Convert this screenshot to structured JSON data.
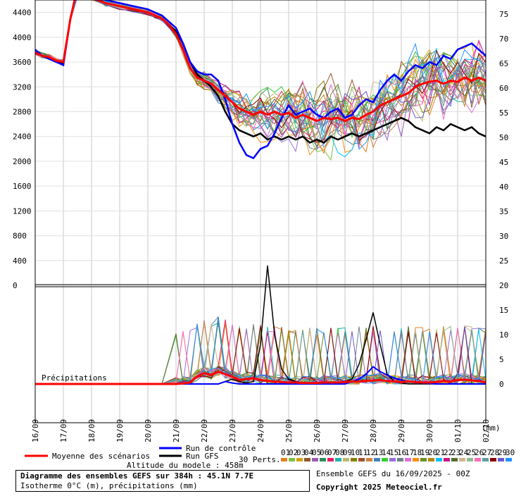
{
  "chart_data": {
    "type": "line",
    "title": "Diagramme des ensembles GEFS sur 384h : 45.1N 7.7E",
    "subtitle": "Isotherme 0°C (m), précipitations (mm)",
    "left_axis_ticks": [
      "4400",
      "4000",
      "3600",
      "3200",
      "2800",
      "2400",
      "2000",
      "1600",
      "1200",
      "800",
      "400",
      "0"
    ],
    "left_axis_range": [
      0,
      4600
    ],
    "right_axis_ticks": [
      "75",
      "70",
      "65",
      "60",
      "55",
      "50",
      "45",
      "40",
      "35",
      "30",
      "25",
      "20",
      "15",
      "10",
      "5",
      "0"
    ],
    "right_axis_unit": "(mm)",
    "x_tick_labels": [
      "16/09",
      "17/09",
      "18/09",
      "19/09",
      "20/09",
      "21/09",
      "22/09",
      "23/09",
      "24/09",
      "25/09",
      "26/09",
      "27/09",
      "28/09",
      "29/09",
      "30/09",
      "01/10",
      "02/10"
    ],
    "x_range_days": [
      0,
      16
    ],
    "precip_label": "Précipitations",
    "legend": {
      "mean": "Moyenne des scénarios",
      "control": "Run de contrôle",
      "gfs": "Run GFS",
      "perts": "30 Perts.",
      "pert_numbers": [
        "01",
        "02",
        "03",
        "04",
        "05",
        "06",
        "07",
        "08",
        "09",
        "10",
        "11",
        "12",
        "13",
        "14",
        "15",
        "16",
        "17",
        "18",
        "19",
        "20",
        "21",
        "22",
        "23",
        "24",
        "25",
        "26",
        "27",
        "28",
        "29",
        "30"
      ]
    },
    "model_altitude": "Altitude du modele : 458m",
    "run_info": "Ensemble GEFS du 16/09/2025 - 00Z",
    "copyright": "Copyright 2025 Meteociel.fr",
    "series_colors": {
      "mean": "#ff0000",
      "control": "#0000ff",
      "gfs": "#000000",
      "perts": [
        "#e67e22",
        "#7fbf3f",
        "#d4a017",
        "#8b5a2b",
        "#9b59b6",
        "#2e8b57",
        "#e91e63",
        "#20b2aa",
        "#bdb76b",
        "#808000",
        "#a0522d",
        "#cd853f",
        "#4682b4",
        "#32cd32",
        "#9370db",
        "#708090",
        "#da70d6",
        "#ff8c00",
        "#6b8e23",
        "#b8860b",
        "#00bfff",
        "#c71585",
        "#556b2f",
        "#d2b48c",
        "#8fbc8f",
        "#ff69b4",
        "#5f9ea0",
        "#8b0000",
        "#6a5acd",
        "#1e90ff"
      ]
    },
    "freezing_level": {
      "x": [
        0,
        0.25,
        0.5,
        0.75,
        1,
        1.25,
        1.5,
        1.75,
        2,
        2.5,
        3,
        3.5,
        4,
        4.25,
        4.5,
        4.75,
        5,
        5.25,
        5.5,
        5.75,
        6,
        6.25,
        6.5,
        6.75,
        7,
        7.25,
        7.5,
        7.75,
        8,
        8.25,
        8.5,
        8.75,
        9,
        9.25,
        9.5,
        9.75,
        10,
        10.25,
        10.5,
        10.75,
        11,
        11.25,
        11.5,
        11.75,
        12,
        12.25,
        12.5,
        12.75,
        13,
        13.25,
        13.5,
        13.75,
        14,
        14.25,
        14.5,
        14.75,
        15,
        15.25,
        15.5,
        15.75,
        16
      ],
      "mean": [
        3750,
        3700,
        3680,
        3620,
        3600,
        4300,
        4800,
        4700,
        4650,
        4550,
        4500,
        4450,
        4400,
        4350,
        4300,
        4200,
        4050,
        3800,
        3500,
        3350,
        3300,
        3250,
        3150,
        3050,
        2950,
        2850,
        2800,
        2750,
        2800,
        2750,
        2800,
        2750,
        2780,
        2700,
        2750,
        2700,
        2650,
        2700,
        2680,
        2700,
        2650,
        2700,
        2680,
        2750,
        2800,
        2900,
        2950,
        3000,
        3050,
        3100,
        3200,
        3250,
        3280,
        3300,
        3250,
        3300,
        3280,
        3350,
        3300,
        3350,
        3300
      ],
      "control": [
        3800,
        3700,
        3650,
        3600,
        3550,
        4300,
        4800,
        4750,
        4700,
        4600,
        4550,
        4500,
        4450,
        4400,
        4350,
        4250,
        4150,
        3900,
        3600,
        3450,
        3400,
        3400,
        3300,
        3000,
        2600,
        2300,
        2100,
        2050,
        2200,
        2250,
        2450,
        2700,
        2900,
        2750,
        2800,
        2850,
        2750,
        2700,
        2800,
        2850,
        2700,
        2750,
        2900,
        3000,
        2950,
        3150,
        3300,
        3400,
        3300,
        3450,
        3550,
        3500,
        3600,
        3550,
        3700,
        3650,
        3800,
        3850,
        3900,
        3800,
        3700
      ],
      "gfs": [
        3750,
        3700,
        3650,
        3600,
        3580,
        4300,
        4800,
        4700,
        4650,
        4550,
        4500,
        4450,
        4400,
        4350,
        4300,
        4200,
        4100,
        3900,
        3600,
        3400,
        3300,
        3200,
        3050,
        2800,
        2600,
        2500,
        2450,
        2400,
        2450,
        2350,
        2400,
        2350,
        2400,
        2350,
        2400,
        2300,
        2350,
        2300,
        2400,
        2350,
        2400,
        2450,
        2400,
        2450,
        2500,
        2550,
        2600,
        2650,
        2700,
        2650,
        2550,
        2500,
        2450,
        2550,
        2500,
        2600,
        2550,
        2500,
        2550,
        2450,
        2400
      ]
    },
    "precipitation_mm": {
      "x": [
        0,
        0.5,
        1,
        1.5,
        2,
        2.5,
        3,
        3.5,
        4,
        4.5,
        5,
        5.25,
        5.5,
        5.75,
        6,
        6.25,
        6.5,
        6.75,
        7,
        7.25,
        7.5,
        7.75,
        8,
        8.25,
        8.5,
        8.75,
        9,
        9.25,
        9.5,
        9.75,
        10,
        10.25,
        10.5,
        10.75,
        11,
        11.25,
        11.5,
        11.75,
        12,
        12.25,
        12.5,
        12.75,
        13,
        13.25,
        13.5,
        13.75,
        14,
        14.25,
        14.5,
        14.75,
        15,
        15.25,
        15.5,
        15.75,
        16
      ],
      "mean": [
        0,
        0,
        0,
        0,
        0,
        0,
        0,
        0,
        0,
        0,
        0,
        0.1,
        0.3,
        1.5,
        2.2,
        1.8,
        2.5,
        2.0,
        1.5,
        0.8,
        1.0,
        1.2,
        0.8,
        0.6,
        0.5,
        0.4,
        0.3,
        0.3,
        0.2,
        0.2,
        0.2,
        0.3,
        0.3,
        0.3,
        0.4,
        0.5,
        0.5,
        0.6,
        0.7,
        0.8,
        0.6,
        0.5,
        0.4,
        0.5,
        0.4,
        0.3,
        0.3,
        0.4,
        0.6,
        0.5,
        0.8,
        0.9,
        0.7,
        0.6,
        0.3
      ],
      "control": [
        0,
        0,
        0,
        0,
        0,
        0,
        0,
        0,
        0,
        0,
        0,
        0,
        0,
        0,
        0,
        0,
        0,
        0.5,
        0.2,
        0,
        0,
        0,
        0,
        0,
        0,
        0,
        0,
        0,
        0,
        0,
        0,
        0,
        0,
        0,
        0,
        0.5,
        1.0,
        2.0,
        3.5,
        2.5,
        1.8,
        1.2,
        0.8,
        0.5,
        0.3,
        0.2,
        0.1,
        0,
        0,
        0,
        0,
        0,
        0,
        0,
        0
      ],
      "gfs": [
        0,
        0,
        0,
        0,
        0,
        0,
        0,
        0,
        0,
        0,
        0,
        0,
        0,
        0,
        0,
        0,
        0,
        0.5,
        1.0,
        0.5,
        0.2,
        0.5,
        8.0,
        24.0,
        10.0,
        3.0,
        1.0,
        0.5,
        0.2,
        0,
        0,
        0,
        0,
        0,
        0.5,
        1.0,
        4.0,
        9.0,
        14.5,
        8.0,
        2.0,
        0.5,
        0.2,
        0,
        0,
        0,
        0,
        0,
        0,
        0,
        0,
        0,
        0,
        0,
        0
      ]
    }
  }
}
